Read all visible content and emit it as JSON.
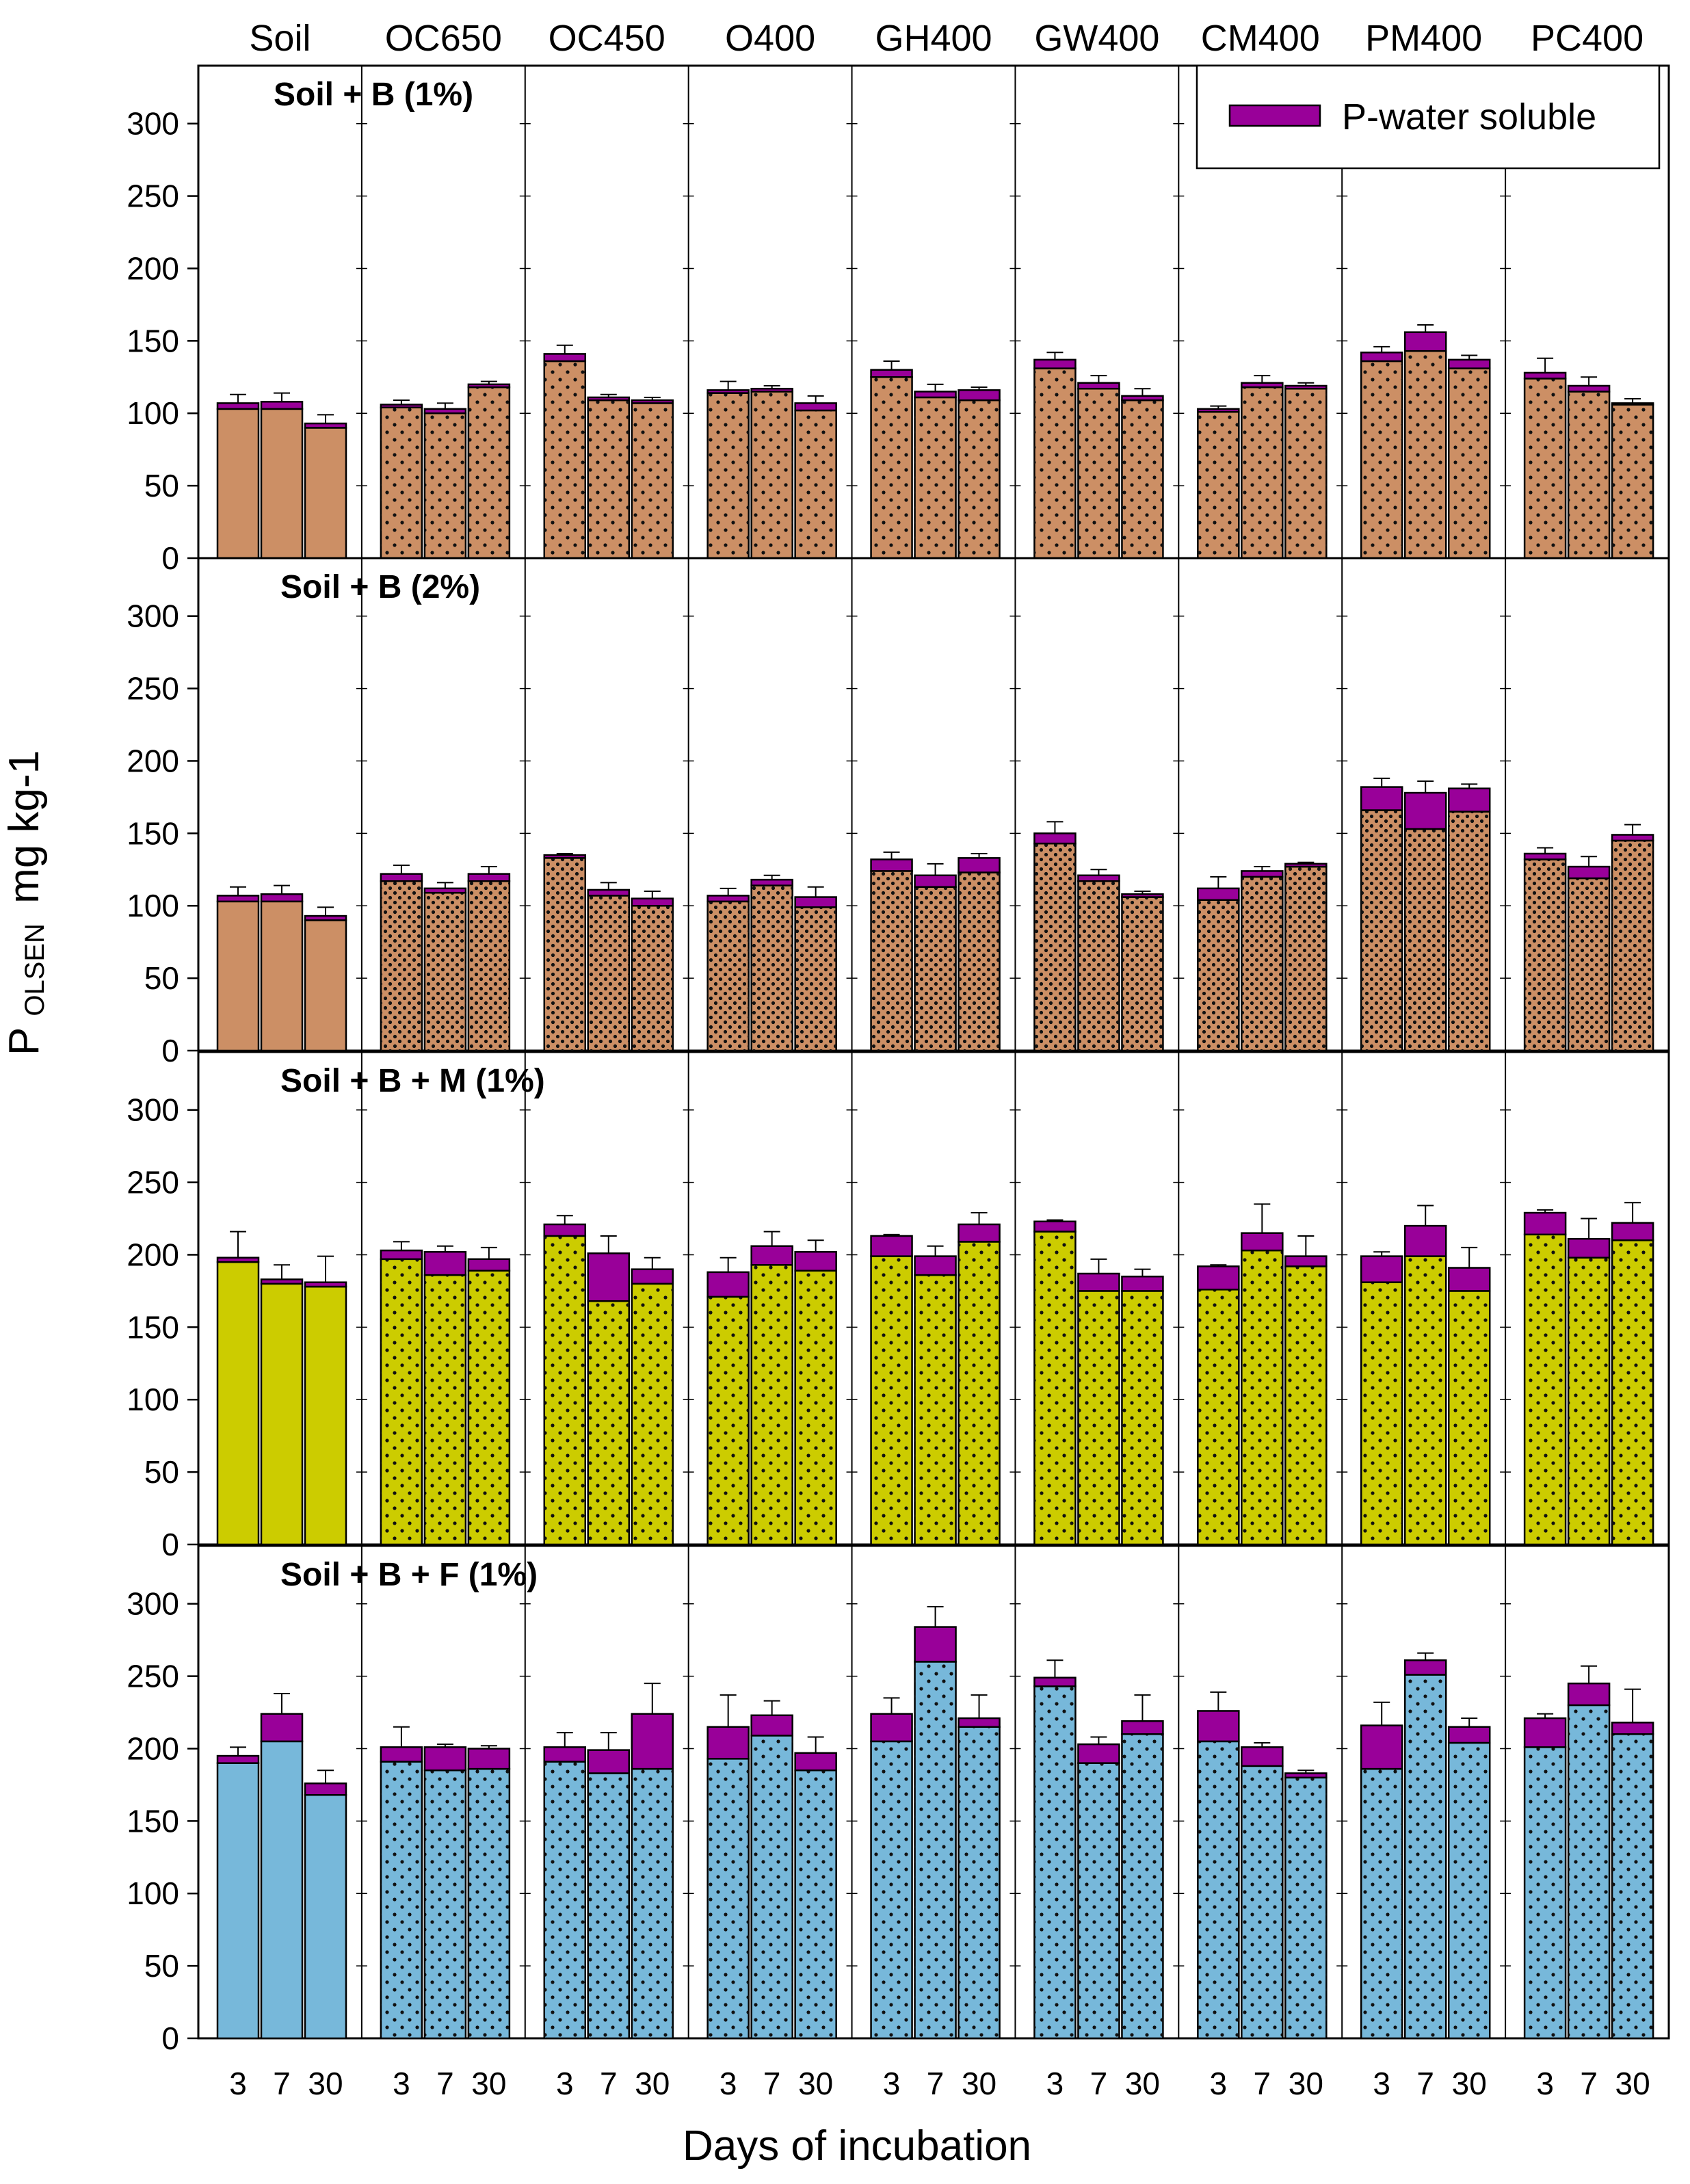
{
  "chart_data": {
    "type": "bar",
    "stacked": true,
    "ylabel": "P",
    "ylabel_subscript": "OLSEN",
    "ylabel_units": "mg kg-1",
    "xlabel": "Days of incubation",
    "ylim": [
      0,
      340
    ],
    "yticks": [
      0,
      50,
      100,
      150,
      200,
      250,
      300
    ],
    "days": [
      "3",
      "7",
      "30"
    ],
    "groups": [
      "Soil",
      "OC650",
      "OC450",
      "O400",
      "GH400",
      "GW400",
      "CM400",
      "PM400",
      "PC400"
    ],
    "legend": {
      "label": "P-water soluble",
      "color": "#990099",
      "position": "top-right"
    },
    "colors": {
      "panel_1": "#CC8F65",
      "panel_2": "#CC8F65",
      "panel_3": "#CCCC00",
      "panel_4": "#77B8DA",
      "water_soluble": "#990099"
    },
    "panels": [
      {
        "title": "Soil + B (1%)",
        "pattern": "dots-sparse",
        "series": [
          {
            "name": "P-Olsen (non water-soluble)",
            "values": [
              [
                103,
                103,
                90
              ],
              [
                104,
                100,
                118
              ],
              [
                136,
                109,
                107
              ],
              [
                114,
                115,
                102
              ],
              [
                125,
                111,
                109
              ],
              [
                131,
                117,
                109
              ],
              [
                101,
                118,
                117
              ],
              [
                136,
                143,
                131
              ],
              [
                124,
                115,
                106
              ]
            ]
          },
          {
            "name": "P-water soluble",
            "values": [
              [
                4,
                5,
                3
              ],
              [
                2,
                3,
                2
              ],
              [
                5,
                2,
                2
              ],
              [
                2,
                2,
                5
              ],
              [
                5,
                4,
                7
              ],
              [
                6,
                4,
                3
              ],
              [
                2,
                3,
                2
              ],
              [
                6,
                13,
                6
              ],
              [
                4,
                4,
                1
              ]
            ]
          },
          {
            "name": "error",
            "values": [
              [
                6,
                6,
                6
              ],
              [
                3,
                4,
                2
              ],
              [
                6,
                2,
                2
              ],
              [
                6,
                2,
                5
              ],
              [
                6,
                5,
                2
              ],
              [
                5,
                5,
                5
              ],
              [
                2,
                5,
                2
              ],
              [
                4,
                5,
                3
              ],
              [
                10,
                6,
                3
              ]
            ]
          }
        ]
      },
      {
        "title": "Soil + B (2%)",
        "pattern": "dots-dense",
        "series": [
          {
            "name": "P-Olsen (non water-soluble)",
            "values": [
              [
                103,
                103,
                90
              ],
              [
                117,
                109,
                117
              ],
              [
                133,
                107,
                100
              ],
              [
                103,
                114,
                99
              ],
              [
                124,
                113,
                123
              ],
              [
                143,
                117,
                106
              ],
              [
                104,
                120,
                127
              ],
              [
                166,
                153,
                165
              ],
              [
                132,
                119,
                145
              ]
            ]
          },
          {
            "name": "P-water soluble",
            "values": [
              [
                4,
                5,
                3
              ],
              [
                5,
                3,
                5
              ],
              [
                2,
                4,
                5
              ],
              [
                4,
                4,
                7
              ],
              [
                8,
                8,
                10
              ],
              [
                7,
                4,
                2
              ],
              [
                8,
                4,
                2
              ],
              [
                16,
                25,
                16
              ],
              [
                4,
                8,
                4
              ]
            ]
          },
          {
            "name": "error",
            "values": [
              [
                6,
                6,
                6
              ],
              [
                6,
                4,
                5
              ],
              [
                1,
                5,
                5
              ],
              [
                5,
                3,
                7
              ],
              [
                5,
                8,
                3
              ],
              [
                8,
                4,
                2
              ],
              [
                8,
                3,
                1
              ],
              [
                6,
                8,
                3
              ],
              [
                4,
                7,
                7
              ]
            ]
          }
        ]
      },
      {
        "title": "Soil + B + M (1%)",
        "pattern": "dots-sparse",
        "series": [
          {
            "name": "P-Olsen (non water-soluble)",
            "values": [
              [
                195,
                180,
                178
              ],
              [
                197,
                186,
                189
              ],
              [
                213,
                168,
                180
              ],
              [
                171,
                193,
                189
              ],
              [
                199,
                186,
                209
              ],
              [
                216,
                175,
                175
              ],
              [
                176,
                203,
                192
              ],
              [
                181,
                199,
                175
              ],
              [
                214,
                198,
                210
              ]
            ]
          },
          {
            "name": "P-water soluble",
            "values": [
              [
                3,
                3,
                3
              ],
              [
                6,
                16,
                8
              ],
              [
                8,
                33,
                10
              ],
              [
                17,
                13,
                13
              ],
              [
                14,
                13,
                12
              ],
              [
                7,
                12,
                10
              ],
              [
                16,
                12,
                7
              ],
              [
                18,
                21,
                16
              ],
              [
                15,
                13,
                12
              ]
            ]
          },
          {
            "name": "error",
            "values": [
              [
                18,
                10,
                18
              ],
              [
                6,
                4,
                8
              ],
              [
                6,
                12,
                8
              ],
              [
                10,
                10,
                8
              ],
              [
                1,
                7,
                8
              ],
              [
                1,
                10,
                5
              ],
              [
                1,
                20,
                14
              ],
              [
                3,
                14,
                14
              ],
              [
                2,
                14,
                14
              ]
            ]
          }
        ]
      },
      {
        "title": "Soil + B + F (1%)",
        "pattern": "dots-sparse",
        "series": [
          {
            "name": "P-Olsen (non water-soluble)",
            "values": [
              [
                190,
                205,
                168
              ],
              [
                191,
                185,
                186
              ],
              [
                191,
                183,
                186
              ],
              [
                193,
                209,
                185
              ],
              [
                205,
                260,
                215
              ],
              [
                243,
                190,
                210
              ],
              [
                205,
                188,
                180
              ],
              [
                186,
                251,
                204
              ],
              [
                201,
                230,
                210
              ]
            ]
          },
          {
            "name": "P-water soluble",
            "values": [
              [
                5,
                19,
                8
              ],
              [
                10,
                16,
                14
              ],
              [
                10,
                16,
                38
              ],
              [
                22,
                14,
                12
              ],
              [
                19,
                24,
                6
              ],
              [
                6,
                13,
                9
              ],
              [
                21,
                13,
                3
              ],
              [
                30,
                10,
                11
              ],
              [
                20,
                15,
                8
              ]
            ]
          },
          {
            "name": "error",
            "values": [
              [
                6,
                14,
                9
              ],
              [
                14,
                2,
                2
              ],
              [
                10,
                12,
                21
              ],
              [
                22,
                10,
                11
              ],
              [
                11,
                14,
                16
              ],
              [
                12,
                5,
                18
              ],
              [
                13,
                3,
                2
              ],
              [
                16,
                5,
                6
              ],
              [
                3,
                12,
                23
              ]
            ]
          }
        ]
      }
    ]
  }
}
